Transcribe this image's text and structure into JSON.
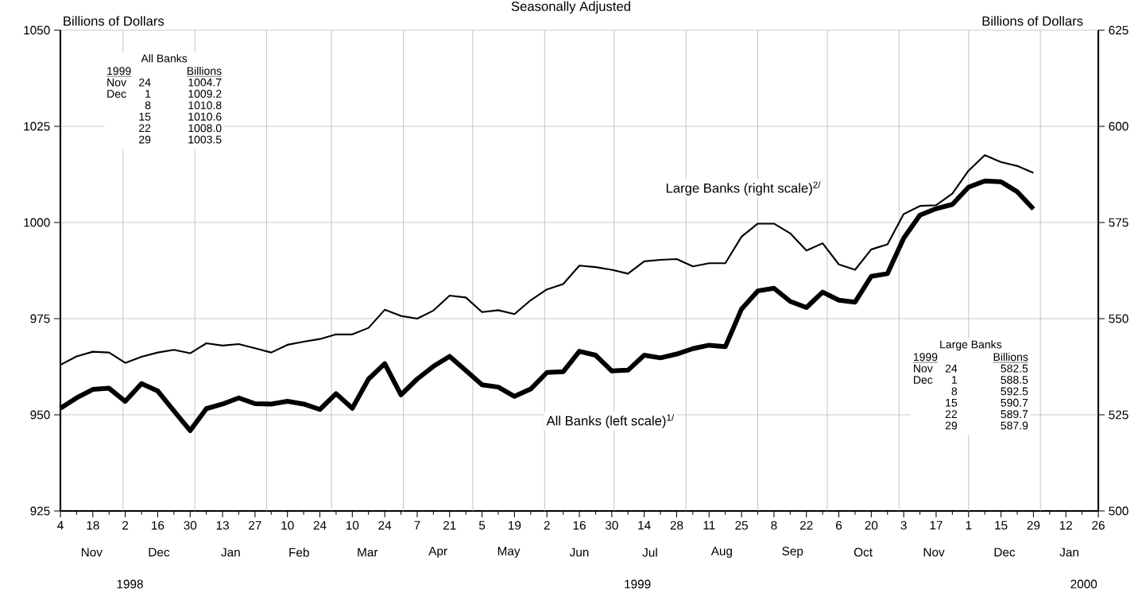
{
  "chart_data": {
    "type": "line",
    "title": "Seasonally Adjusted",
    "ylabel": "Billions of Dollars",
    "y2label": "Billions of Dollars",
    "marker": "none",
    "grid": "y",
    "x": [
      "1998-11-04",
      "1998-11-11",
      "1998-11-18",
      "1998-11-25",
      "1998-12-02",
      "1998-12-09",
      "1998-12-16",
      "1998-12-23",
      "1998-12-30",
      "1999-01-06",
      "1999-01-13",
      "1999-01-20",
      "1999-01-27",
      "1999-02-03",
      "1999-02-10",
      "1999-02-17",
      "1999-02-24",
      "1999-03-03",
      "1999-03-10",
      "1999-03-17",
      "1999-03-24",
      "1999-03-31",
      "1999-04-07",
      "1999-04-14",
      "1999-04-21",
      "1999-04-28",
      "1999-05-05",
      "1999-05-12",
      "1999-05-19",
      "1999-05-26",
      "1999-06-02",
      "1999-06-09",
      "1999-06-16",
      "1999-06-23",
      "1999-06-30",
      "1999-07-07",
      "1999-07-14",
      "1999-07-21",
      "1999-07-28",
      "1999-08-04",
      "1999-08-11",
      "1999-08-18",
      "1999-08-25",
      "1999-09-01",
      "1999-09-08",
      "1999-09-15",
      "1999-09-22",
      "1999-09-29",
      "1999-10-06",
      "1999-10-13",
      "1999-10-20",
      "1999-10-27",
      "1999-11-03",
      "1999-11-10",
      "1999-11-17",
      "1999-11-24",
      "1999-12-01",
      "1999-12-08",
      "1999-12-15",
      "1999-12-22",
      "1999-12-29"
    ],
    "series": [
      {
        "name": "All Banks (left scale)$^{1/}$",
        "color": "#000000",
        "axis": "y",
        "values": [
          951.7,
          954.4,
          956.6,
          956.9,
          953.5,
          958.1,
          956.2,
          951.0,
          945.9,
          951.6,
          952.8,
          954.4,
          952.9,
          952.8,
          953.5,
          952.8,
          951.4,
          955.5,
          951.7,
          959.3,
          963.3,
          955.2,
          959.3,
          962.6,
          965.2,
          961.5,
          957.8,
          957.2,
          954.8,
          956.7,
          961.0,
          961.2,
          966.5,
          965.5,
          961.4,
          961.6,
          965.5,
          964.8,
          965.8,
          967.2,
          968.1,
          967.7,
          977.5,
          982.2,
          982.9,
          979.5,
          977.9,
          981.9,
          979.8,
          979.3,
          986.0,
          986.7,
          995.9,
          1001.9,
          1003.6,
          1004.7,
          1009.2,
          1010.8,
          1010.6,
          1008.0,
          1003.5
        ]
      },
      {
        "name": "Large Banks (right scale)$^{2/}$",
        "color": "#000000",
        "axis": "y2",
        "values": [
          538.0,
          540.2,
          541.4,
          541.2,
          538.5,
          540.1,
          541.2,
          541.9,
          541.0,
          543.6,
          543.0,
          543.4,
          542.3,
          541.2,
          543.2,
          544.0,
          544.7,
          545.9,
          545.9,
          547.6,
          552.3,
          550.7,
          550.0,
          552.1,
          556.0,
          555.5,
          551.7,
          552.2,
          551.2,
          554.8,
          557.6,
          559.0,
          563.8,
          563.4,
          562.7,
          561.7,
          564.9,
          565.3,
          565.5,
          563.6,
          564.4,
          564.4,
          571.3,
          574.7,
          574.7,
          572.2,
          567.7,
          569.6,
          564.1,
          562.7,
          568.0,
          569.3,
          577.2,
          579.3,
          579.5,
          582.5,
          588.5,
          592.5,
          590.7,
          589.7,
          587.9
        ]
      }
    ],
    "xlim": [
      "1998-11-04",
      "2000-01-26"
    ],
    "xticks": [
      {
        "value": "1998-11-04",
        "label": "4"
      },
      {
        "value": "1998-11-18",
        "label": "18"
      },
      {
        "value": "1998-12-02",
        "label": "2"
      },
      {
        "value": "1998-12-16",
        "label": "16"
      },
      {
        "value": "1998-12-30",
        "label": "30"
      },
      {
        "value": "1999-01-13",
        "label": "13"
      },
      {
        "value": "1999-01-27",
        "label": "27"
      },
      {
        "value": "1999-02-10",
        "label": "10"
      },
      {
        "value": "1999-02-24",
        "label": "24"
      },
      {
        "value": "1999-03-10",
        "label": "10"
      },
      {
        "value": "1999-03-24",
        "label": "24"
      },
      {
        "value": "1999-04-07",
        "label": "7"
      },
      {
        "value": "1999-04-21",
        "label": "21"
      },
      {
        "value": "1999-05-05",
        "label": "5"
      },
      {
        "value": "1999-05-19",
        "label": "19"
      },
      {
        "value": "1999-06-02",
        "label": "2"
      },
      {
        "value": "1999-06-16",
        "label": "16"
      },
      {
        "value": "1999-06-30",
        "label": "30"
      },
      {
        "value": "1999-07-14",
        "label": "14"
      },
      {
        "value": "1999-07-28",
        "label": "28"
      },
      {
        "value": "1999-08-11",
        "label": "11"
      },
      {
        "value": "1999-08-25",
        "label": "25"
      },
      {
        "value": "1999-09-08",
        "label": "8"
      },
      {
        "value": "1999-09-22",
        "label": "22"
      },
      {
        "value": "1999-10-06",
        "label": "6"
      },
      {
        "value": "1999-10-20",
        "label": "20"
      },
      {
        "value": "1999-11-03",
        "label": "3"
      },
      {
        "value": "1999-11-17",
        "label": "17"
      },
      {
        "value": "1999-12-01",
        "label": "1"
      },
      {
        "value": "1999-12-15",
        "label": "15"
      },
      {
        "value": "1999-12-29",
        "label": "29"
      },
      {
        "value": "2000-01-12",
        "label": "12"
      },
      {
        "value": "2000-01-26",
        "label": "26"
      },
      {
        "value": "1998-11-11",
        "label": null
      },
      {
        "value": "1998-11-25",
        "label": null
      },
      {
        "value": "1998-12-09",
        "label": null
      },
      {
        "value": "1998-12-23",
        "label": null
      },
      {
        "value": "1999-01-06",
        "label": null
      },
      {
        "value": "1999-01-20",
        "label": null
      },
      {
        "value": "1999-02-03",
        "label": null
      },
      {
        "value": "1999-02-17",
        "label": null
      },
      {
        "value": "1999-03-03",
        "label": null
      },
      {
        "value": "1999-03-17",
        "label": null
      },
      {
        "value": "1999-03-31",
        "label": null
      },
      {
        "value": "1999-04-14",
        "label": null
      },
      {
        "value": "1999-04-28",
        "label": null
      },
      {
        "value": "1999-05-12",
        "label": null
      },
      {
        "value": "1999-05-26",
        "label": null
      },
      {
        "value": "1999-06-09",
        "label": null
      },
      {
        "value": "1999-06-23",
        "label": null
      },
      {
        "value": "1999-07-07",
        "label": null
      },
      {
        "value": "1999-07-21",
        "label": null
      },
      {
        "value": "1999-08-04",
        "label": null
      },
      {
        "value": "1999-08-18",
        "label": null
      },
      {
        "value": "1999-09-01",
        "label": null
      },
      {
        "value": "1999-09-15",
        "label": null
      },
      {
        "value": "1999-09-29",
        "label": null
      },
      {
        "value": "1999-10-13",
        "label": null
      },
      {
        "value": "1999-10-27",
        "label": null
      },
      {
        "value": "1999-11-10",
        "label": null
      },
      {
        "value": "1999-11-24",
        "label": null
      },
      {
        "value": "1999-12-08",
        "label": null
      },
      {
        "value": "1999-12-22",
        "label": null
      },
      {
        "value": "2000-01-05",
        "label": null
      },
      {
        "value": "2000-01-19",
        "label": null
      }
    ],
    "ylim": [
      925,
      1050
    ],
    "yticks": [
      925,
      950,
      975,
      1000,
      1025,
      1050
    ],
    "y2lim": [
      500,
      625
    ],
    "y2ticks": [
      500,
      525,
      550,
      575,
      600,
      625
    ],
    "ref_lines": [
      {
        "axis": "x",
        "value": "1998-12-01",
        "color": "#c0c0c0"
      },
      {
        "axis": "x",
        "value": "1999-01-01",
        "color": "#c0c0c0"
      },
      {
        "axis": "x",
        "value": "1999-02-01",
        "color": "#c0c0c0"
      },
      {
        "axis": "x",
        "value": "1999-03-01",
        "color": "#c0c0c0"
      },
      {
        "axis": "x",
        "value": "1999-04-01",
        "color": "#c0c0c0"
      },
      {
        "axis": "x",
        "value": "1999-05-01",
        "color": "#c0c0c0"
      },
      {
        "axis": "x",
        "value": "1999-06-01",
        "color": "#c0c0c0"
      },
      {
        "axis": "x",
        "value": "1999-07-01",
        "color": "#c0c0c0"
      },
      {
        "axis": "x",
        "value": "1999-08-01",
        "color": "#c0c0c0"
      },
      {
        "axis": "x",
        "value": "1999-09-01",
        "color": "#c0c0c0"
      },
      {
        "axis": "x",
        "value": "1999-10-01",
        "color": "#c0c0c0"
      },
      {
        "axis": "x",
        "value": "1999-11-01",
        "color": "#c0c0c0"
      },
      {
        "axis": "x",
        "value": "1999-12-01",
        "color": "#c0c0c0"
      },
      {
        "axis": "x",
        "value": "2000-01-01",
        "color": "#c0c0c0"
      }
    ],
    "annotations": [
      "Nov",
      "Dec",
      "Jan",
      "Feb",
      "Mar",
      "Apr",
      "May",
      "Jun",
      "Jul",
      "Aug",
      "Sep",
      "Oct",
      "Nov",
      "Dec",
      "Jan",
      "1998",
      "1999",
      "2000",
      "All Banks",
      "1999",
      "Billions",
      "Nov",
      "24",
      "1004.7",
      "Dec",
      "1",
      "1009.2",
      "8",
      "1010.8",
      "15",
      "1010.6",
      "22",
      "1008.0",
      "29",
      "1003.5",
      "Large Banks",
      "1999",
      "Billions",
      "Nov",
      "24",
      "582.5",
      "Dec",
      "1",
      "588.5",
      "8",
      "592.5",
      "15",
      "590.7",
      "22",
      "589.7",
      "29",
      "587.9"
    ]
  }
}
